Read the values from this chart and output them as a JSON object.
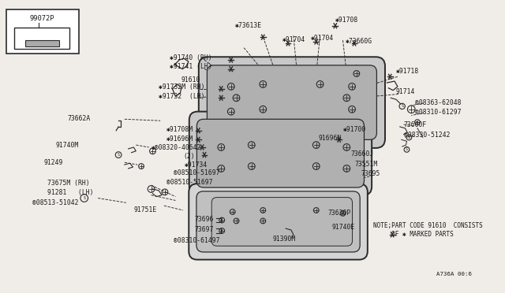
{
  "bg_color": "#f0ede8",
  "line_color": "#2a2a2a",
  "text_color": "#1a1a1a",
  "fig_width": 6.4,
  "fig_height": 3.72,
  "diagram_code": "A736A 00:6",
  "note_line1": "NOTE;PART CODE 91610  CONSISTS",
  "note_line2": "     OF ✱ MARKED PARTS",
  "panel_fill": "#c8c8c8",
  "panel_inner_fill": "#b0b0b0",
  "panel_edge": "#2a2a2a"
}
